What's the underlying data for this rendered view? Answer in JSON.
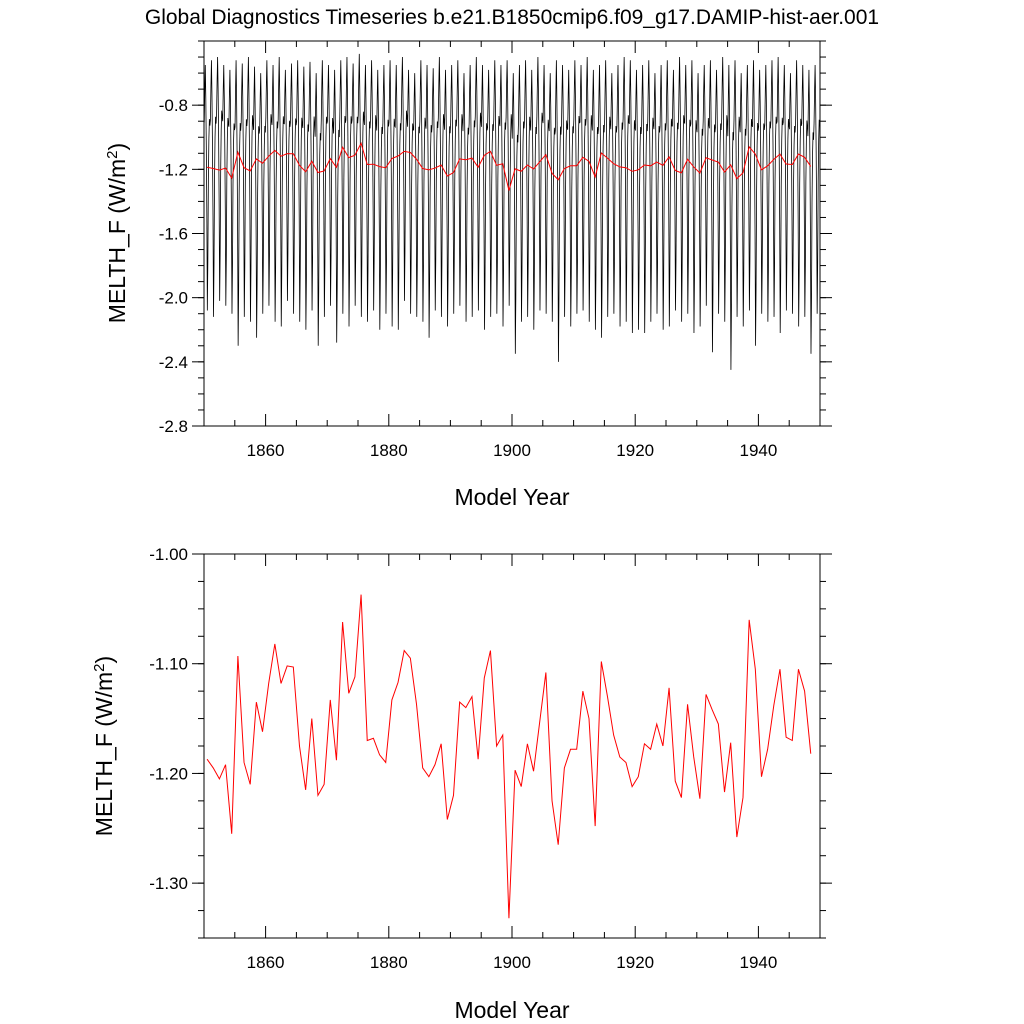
{
  "title": "Global Diagnostics Timeseries b.e21.B1850cmip6.f09_g17.DAMIP-hist-aer.001",
  "colors": {
    "monthly": "#000000",
    "annual": "#ff0000",
    "frame": "#000000"
  },
  "chart_data": [
    {
      "type": "line",
      "title": "Global Diagnostics Timeseries b.e21.B1850cmip6.f09_g17.DAMIP-hist-aer.001",
      "xlabel": "Model Year",
      "ylabel": "MELTH_F (W/m²)",
      "ylabel_main": "MELTH_F (W/m",
      "ylabel_sup": "2",
      "ylabel_end": ")",
      "xlim": [
        1850,
        1950
      ],
      "ylim": [
        -2.8,
        -0.4
      ],
      "x_ticks": [
        1860,
        1880,
        1900,
        1920,
        1940
      ],
      "x_tick_labels": [
        "1860",
        "1880",
        "1900",
        "1920",
        "1940"
      ],
      "y_ticks": [
        -2.8,
        -2.4,
        -2.0,
        -1.6,
        -1.2,
        -0.8
      ],
      "y_tick_labels": [
        "-2.8",
        "-2.4",
        "-2.0",
        "-1.6",
        "-1.2",
        "-0.8"
      ],
      "series": [
        {
          "kind": "monthly",
          "x_start": 1850.042,
          "x_step": 0.08333,
          "values_note": "monthly series: annual cycle, one year per row",
          "monthly_cycle_pattern": [
            -0.9,
            -0.7,
            -0.55,
            -0.75,
            -1.05,
            -1.45,
            -2.05,
            -1.75,
            -1.25,
            -1.0,
            -0.88,
            -0.92
          ],
          "yearly_minima": [
            -2.08,
            -2.12,
            -2.02,
            -2.05,
            -2.1,
            -2.3,
            -2.12,
            -2.15,
            -2.25,
            -2.1,
            -2.05,
            -2.15,
            -2.18,
            -2.02,
            -2.1,
            -2.15,
            -2.2,
            -2.08,
            -2.3,
            -2.12,
            -2.05,
            -2.28,
            -2.1,
            -2.18,
            -2.05,
            -2.12,
            -2.15,
            -2.08,
            -2.2,
            -2.1,
            -2.18,
            -2.2,
            -2.02,
            -2.1,
            -2.12,
            -2.15,
            -2.25,
            -2.08,
            -2.12,
            -2.18,
            -2.1,
            -2.05,
            -2.15,
            -2.12,
            -2.08,
            -2.2,
            -2.12,
            -2.1,
            -2.18,
            -2.05,
            -2.35,
            -2.15,
            -2.12,
            -2.2,
            -2.08,
            -2.1,
            -2.15,
            -2.4,
            -2.12,
            -2.18,
            -2.1,
            -2.08,
            -2.15,
            -2.2,
            -2.25,
            -2.12,
            -2.1,
            -2.18,
            -2.15,
            -2.22,
            -2.2,
            -2.22,
            -2.15,
            -2.1,
            -2.2,
            -2.18,
            -2.08,
            -2.15,
            -2.1,
            -2.22,
            -2.18,
            -2.05,
            -2.34,
            -2.1,
            -2.15,
            -2.45,
            -2.12,
            -2.18,
            -2.08,
            -2.3,
            -2.1,
            -2.15,
            -2.12,
            -2.22,
            -2.08,
            -2.1,
            -2.18,
            -2.12,
            -2.35,
            -2.1
          ],
          "yearly_maxima": [
            -0.55,
            -0.52,
            -0.5,
            -0.55,
            -0.58,
            -0.52,
            -0.54,
            -0.5,
            -0.56,
            -0.6,
            -0.52,
            -0.55,
            -0.5,
            -0.58,
            -0.54,
            -0.52,
            -0.56,
            -0.53,
            -0.6,
            -0.52,
            -0.55,
            -0.58,
            -0.52,
            -0.5,
            -0.54,
            -0.48,
            -0.55,
            -0.52,
            -0.58,
            -0.55,
            -0.52,
            -0.55,
            -0.5,
            -0.58,
            -0.6,
            -0.52,
            -0.55,
            -0.57,
            -0.5,
            -0.58,
            -0.55,
            -0.52,
            -0.6,
            -0.55,
            -0.5,
            -0.55,
            -0.58,
            -0.52,
            -0.55,
            -0.52,
            -0.6,
            -0.55,
            -0.52,
            -0.58,
            -0.5,
            -0.55,
            -0.6,
            -0.52,
            -0.55,
            -0.58,
            -0.52,
            -0.55,
            -0.5,
            -0.58,
            -0.55,
            -0.52,
            -0.6,
            -0.55,
            -0.5,
            -0.52,
            -0.58,
            -0.55,
            -0.52,
            -0.6,
            -0.55,
            -0.52,
            -0.58,
            -0.5,
            -0.55,
            -0.52,
            -0.6,
            -0.55,
            -0.52,
            -0.58,
            -0.5,
            -0.55,
            -0.52,
            -0.6,
            -0.55,
            -0.52,
            -0.58,
            -0.55,
            -0.52,
            -0.5,
            -0.55,
            -0.6,
            -0.52,
            -0.55,
            -0.58,
            -0.55
          ]
        },
        {
          "kind": "annual",
          "x_start": 1850.5,
          "x_step": 1
        }
      ]
    },
    {
      "type": "line",
      "xlabel": "Model Year",
      "ylabel": "MELTH_F (W/m²)",
      "ylabel_main": "MELTH_F (W/m",
      "ylabel_sup": "2",
      "ylabel_end": ")",
      "xlim": [
        1850,
        1950
      ],
      "ylim": [
        -1.35,
        -1.0
      ],
      "x_ticks": [
        1860,
        1880,
        1900,
        1920,
        1940
      ],
      "x_tick_labels": [
        "1860",
        "1880",
        "1900",
        "1920",
        "1940"
      ],
      "y_ticks": [
        -1.3,
        -1.2,
        -1.1,
        -1.0
      ],
      "y_tick_labels": [
        "-1.30",
        "-1.20",
        "-1.10",
        "-1.00"
      ],
      "series": [
        {
          "kind": "annual",
          "x_start": 1850.5,
          "x_step": 1,
          "values": [
            -1.187,
            -1.195,
            -1.205,
            -1.192,
            -1.255,
            -1.093,
            -1.19,
            -1.21,
            -1.135,
            -1.162,
            -1.118,
            -1.082,
            -1.118,
            -1.102,
            -1.103,
            -1.175,
            -1.215,
            -1.15,
            -1.22,
            -1.21,
            -1.133,
            -1.188,
            -1.062,
            -1.127,
            -1.112,
            -1.037,
            -1.17,
            -1.168,
            -1.183,
            -1.19,
            -1.133,
            -1.117,
            -1.088,
            -1.095,
            -1.137,
            -1.195,
            -1.203,
            -1.192,
            -1.173,
            -1.242,
            -1.22,
            -1.135,
            -1.14,
            -1.13,
            -1.187,
            -1.113,
            -1.088,
            -1.175,
            -1.165,
            -1.332,
            -1.197,
            -1.212,
            -1.173,
            -1.198,
            -1.153,
            -1.108,
            -1.225,
            -1.265,
            -1.195,
            -1.178,
            -1.178,
            -1.125,
            -1.15,
            -1.248,
            -1.098,
            -1.13,
            -1.165,
            -1.185,
            -1.19,
            -1.212,
            -1.203,
            -1.173,
            -1.178,
            -1.155,
            -1.175,
            -1.122,
            -1.207,
            -1.222,
            -1.137,
            -1.185,
            -1.223,
            -1.128,
            -1.142,
            -1.155,
            -1.217,
            -1.172,
            -1.258,
            -1.222,
            -1.06,
            -1.105,
            -1.203,
            -1.178,
            -1.138,
            -1.105,
            -1.167,
            -1.17,
            -1.105,
            -1.125,
            -1.182
          ]
        }
      ]
    }
  ]
}
